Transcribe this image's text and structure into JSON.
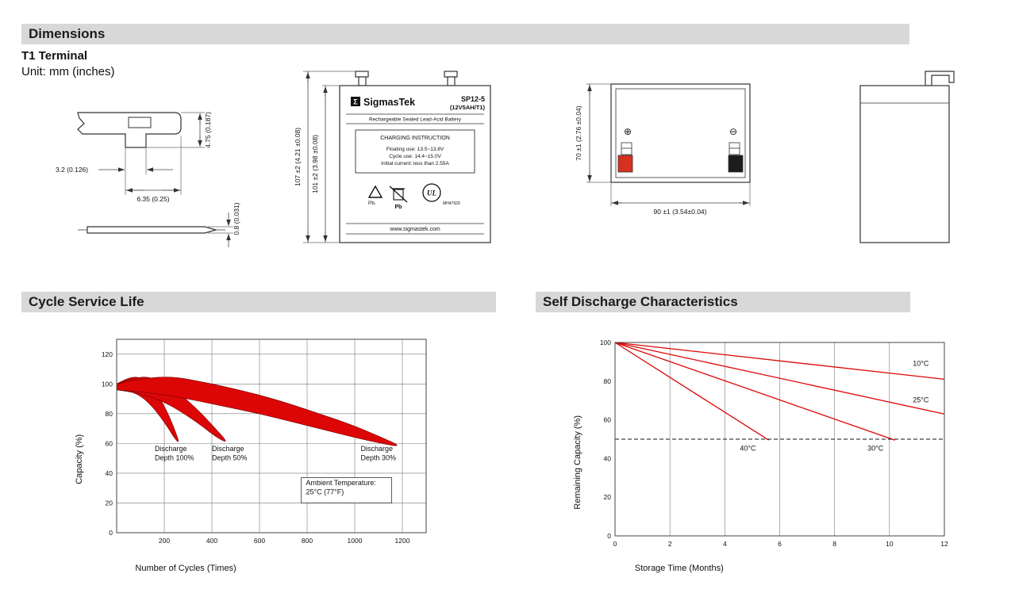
{
  "dimensions": {
    "header": "Dimensions",
    "terminal_title": "T1 Terminal",
    "unit_label": "Unit: mm (inches)",
    "terminal_detail": {
      "tab_height": "4.75 (0.187)",
      "pin_width": "3.2 (0.126)",
      "tab_length": "6.35 (0.25)",
      "thickness": "0.8 (0.031)"
    },
    "front_view": {
      "overall_height": "107 ±2 (4.21 ±0.08)",
      "case_height": "101 ±2 (3.98 ±0.08)"
    },
    "top_view": {
      "depth": "70 ±1 (2.76 ±0.04)",
      "width": "90 ±1 (3.54±0.04)",
      "positive_symbol": "⊕",
      "negative_symbol": "⊖"
    },
    "label": {
      "sigma": "Σ",
      "brand": "SigmasTek",
      "model": "SP12-5",
      "rating": "(12V5AH/T1)",
      "type": "Rechargeable Sealed Lead-Acid Battery",
      "charging_title": "CHARGING INSTRUCTION",
      "charging_floating": "Floating use: 13.5~13.8V",
      "charging_cycle": "Cycle use: 14.4~15.0V",
      "charging_initial": "Initial current: less than 2.55A",
      "pb_recycle": "Pb.",
      "pb_bin": "Pb",
      "ul_text": "UL",
      "ul_file": "MH47929",
      "website": "www.sigmastek.com"
    }
  },
  "cycle_section": {
    "header": "Cycle Service Life"
  },
  "discharge_section": {
    "header": "Self Discharge Characteristics"
  },
  "chart_data": [
    {
      "type": "area",
      "title": "Cycle Service Life",
      "xlabel": "Number of Cycles (Times)",
      "ylabel": "Capacity (%)",
      "xlim": [
        0,
        1300
      ],
      "ylim": [
        0,
        130
      ],
      "xticks": [
        200,
        400,
        600,
        800,
        1000,
        1200
      ],
      "yticks": [
        0,
        20,
        40,
        60,
        80,
        100,
        120
      ],
      "grid_x": true,
      "grid_y": true,
      "bands": [
        {
          "name": "Discharge Depth 100%",
          "fill": "#dd0606",
          "upper": [
            [
              0,
              100
            ],
            [
              45,
              104
            ],
            [
              95,
              105
            ],
            [
              145,
              99
            ],
            [
              195,
              87
            ],
            [
              235,
              73
            ],
            [
              265,
              60
            ]
          ],
          "lower": [
            [
              0,
              97
            ],
            [
              60,
              95
            ],
            [
              110,
              91
            ],
            [
              160,
              83
            ],
            [
              210,
              72
            ],
            [
              245,
              63
            ],
            [
              265,
              60
            ]
          ]
        },
        {
          "name": "Discharge Depth 50%",
          "fill": "#dd0606",
          "upper": [
            [
              0,
              100
            ],
            [
              70,
              104
            ],
            [
              135,
              105
            ],
            [
              205,
              100
            ],
            [
              275,
              92
            ],
            [
              345,
              82
            ],
            [
              415,
              70
            ],
            [
              470,
              60
            ]
          ],
          "lower": [
            [
              0,
              96
            ],
            [
              85,
              94
            ],
            [
              170,
              90
            ],
            [
              255,
              83
            ],
            [
              340,
              74
            ],
            [
              420,
              64
            ],
            [
              470,
              60
            ]
          ]
        },
        {
          "name": "Discharge Depth 30%",
          "fill": "#dd0606",
          "upper": [
            [
              0,
              100
            ],
            [
              120,
              104
            ],
            [
              230,
              105
            ],
            [
              340,
              102
            ],
            [
              460,
              98
            ],
            [
              590,
              93
            ],
            [
              720,
              87
            ],
            [
              850,
              80
            ],
            [
              980,
              73
            ],
            [
              1100,
              65
            ],
            [
              1210,
              57
            ]
          ],
          "lower": [
            [
              0,
              96
            ],
            [
              150,
              94
            ],
            [
              300,
              90
            ],
            [
              450,
              85
            ],
            [
              600,
              80
            ],
            [
              750,
              74
            ],
            [
              900,
              68
            ],
            [
              1050,
              62
            ],
            [
              1210,
              57
            ]
          ]
        }
      ],
      "annotations": [
        {
          "lines": [
            "Discharge",
            "Depth 100%"
          ],
          "x": 160,
          "y": 55
        },
        {
          "lines": [
            "Discharge",
            "Depth 50%"
          ],
          "x": 400,
          "y": 55
        },
        {
          "lines": [
            "Discharge",
            "Depth 30%"
          ],
          "x": 1025,
          "y": 55
        },
        {
          "lines": [
            "Ambient Temperature:",
            "25°C (77°F)"
          ],
          "x": 795,
          "y": 32,
          "box": true
        }
      ]
    },
    {
      "type": "line",
      "title": "Self Discharge Characteristics",
      "xlabel": "Storage Time (Months)",
      "ylabel": "Remaining Capacity (%)",
      "xlim": [
        0,
        12
      ],
      "ylim": [
        0,
        100
      ],
      "xticks": [
        0,
        2,
        4,
        6,
        8,
        10,
        12
      ],
      "yticks": [
        0,
        20,
        40,
        60,
        80,
        100
      ],
      "grid_x": true,
      "grid_y": false,
      "series": [
        {
          "name": "10°C",
          "color": "#dd0606",
          "points": [
            [
              0,
              100
            ],
            [
              12,
              81
            ]
          ]
        },
        {
          "name": "25°C",
          "color": "#dd0606",
          "points": [
            [
              0,
              100
            ],
            [
              12,
              63
            ]
          ]
        },
        {
          "name": "30°C",
          "color": "#dd0606",
          "points": [
            [
              0,
              100
            ],
            [
              10.2,
              49.5
            ]
          ]
        },
        {
          "name": "40°C",
          "color": "#dd0606",
          "points": [
            [
              0,
              100
            ],
            [
              5.6,
              49.5
            ]
          ]
        }
      ],
      "ref_lines": [
        {
          "y": 50,
          "dash": true,
          "color": "#111111"
        }
      ],
      "annotations": [
        {
          "lines": [
            "10°C"
          ],
          "x": 10.85,
          "y": 88
        },
        {
          "lines": [
            "25°C"
          ],
          "x": 10.85,
          "y": 69
        },
        {
          "lines": [
            "40°C"
          ],
          "x": 4.55,
          "y": 44
        },
        {
          "lines": [
            "30°C"
          ],
          "x": 9.2,
          "y": 44
        }
      ]
    }
  ]
}
